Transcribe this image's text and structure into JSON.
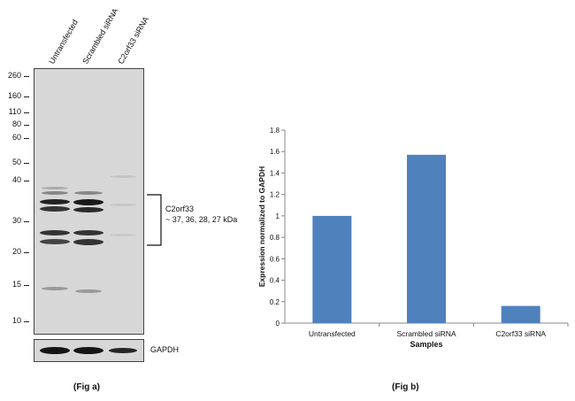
{
  "fig_a": {
    "caption": "(Fig a)",
    "lanes": [
      "Untransfected",
      "Scrambled siRNA",
      "C2orf33 siRNA"
    ],
    "mw_markers": [
      "260",
      "160",
      "110",
      "80",
      "60",
      "50",
      "40",
      "30",
      "20",
      "15",
      "10"
    ],
    "bracket_label_line1": "C2orf33",
    "bracket_label_line2": "~ 37, 36, 28, 27 kDa",
    "loading_control_label": "GAPDH"
  },
  "fig_b": {
    "caption": "(Fig b)"
  },
  "chart_data": {
    "type": "bar",
    "categories": [
      "Untransfected",
      "Scrambled siRNA",
      "C2orf33  siRNA"
    ],
    "values": [
      1.0,
      1.57,
      0.16
    ],
    "xlabel": "Samples",
    "ylabel": "Expression normalized to GAPDH",
    "ylim": [
      0,
      1.8
    ],
    "yticks": [
      "0",
      "0.2",
      "0.4",
      "0.6",
      "0.8",
      "1",
      "1.2",
      "1.4",
      "1.6",
      "1.8"
    ],
    "bar_color": "#4f81bd",
    "grid": false,
    "legend": "none"
  }
}
